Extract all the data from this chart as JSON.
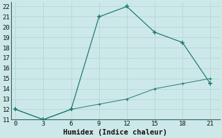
{
  "xlabel": "Humidex (Indice chaleur)",
  "line1_x": [
    0,
    3,
    6,
    9,
    12,
    15,
    18,
    21
  ],
  "line1_y": [
    12,
    11,
    12,
    21,
    22,
    19.5,
    18.5,
    14.5
  ],
  "line2_x": [
    0,
    3,
    6,
    9,
    12,
    15,
    18,
    21
  ],
  "line2_y": [
    12,
    11,
    12,
    12.5,
    13,
    14,
    14.5,
    15
  ],
  "line_color": "#1f7a70",
  "bg_color": "#cde8e8",
  "grid_color": "#b8d8d8",
  "xlim": [
    -0.5,
    22
  ],
  "ylim": [
    11,
    22.4
  ],
  "xticks": [
    0,
    3,
    6,
    9,
    12,
    15,
    18,
    21
  ],
  "yticks": [
    11,
    12,
    13,
    14,
    15,
    16,
    17,
    18,
    19,
    20,
    21,
    22
  ],
  "xlabel_fontsize": 7.5,
  "tick_fontsize": 6.5
}
